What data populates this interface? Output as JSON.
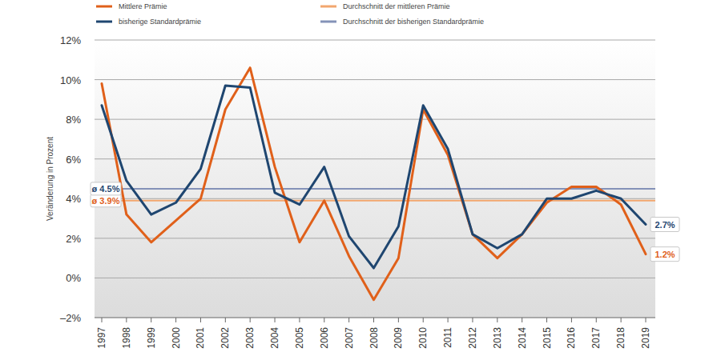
{
  "chart_data": {
    "type": "line",
    "y_label": "Veränderung in Prozent",
    "categories": [
      "1997",
      "1998",
      "1999",
      "2000",
      "2001",
      "2002",
      "2003",
      "2004",
      "2005",
      "2006",
      "2007",
      "2008",
      "2009",
      "2010",
      "2011",
      "2012",
      "2013",
      "2014",
      "2015",
      "2016",
      "2017",
      "2018",
      "2019"
    ],
    "series": [
      {
        "name": "Mittlere Prämie",
        "color": "#e0601a",
        "values": [
          9.8,
          3.2,
          1.8,
          2.9,
          4.0,
          8.5,
          10.6,
          5.6,
          1.8,
          3.9,
          1.1,
          -1.1,
          1.0,
          8.5,
          6.2,
          2.2,
          1.0,
          2.2,
          3.8,
          4.6,
          4.6,
          3.7,
          1.2
        ],
        "value_labels": [
          null,
          null,
          null,
          null,
          null,
          null,
          null,
          null,
          null,
          null,
          null,
          null,
          null,
          null,
          null,
          null,
          null,
          null,
          null,
          null,
          null,
          null,
          "1.2%"
        ]
      },
      {
        "name": "bisherige Standardprämie",
        "color": "#1f4670",
        "values": [
          8.7,
          4.9,
          3.2,
          3.8,
          5.5,
          9.7,
          9.6,
          4.3,
          3.7,
          5.6,
          2.1,
          0.5,
          2.6,
          8.7,
          6.5,
          2.2,
          1.5,
          2.2,
          4.0,
          4.0,
          4.4,
          4.0,
          2.7
        ],
        "value_labels": [
          null,
          null,
          null,
          null,
          null,
          null,
          null,
          null,
          null,
          null,
          null,
          null,
          null,
          null,
          null,
          null,
          null,
          null,
          null,
          null,
          null,
          null,
          "2.7%"
        ]
      }
    ],
    "reference_lines": [
      {
        "name": "Durchschnitt der mittleren Prämie",
        "color": "#f2a66e",
        "value": 3.9,
        "label": "ø 3.9%"
      },
      {
        "name": "Durchschnitt der bisherigen Standardprämie",
        "color": "#8492b8",
        "value": 4.5,
        "label": "ø 4.5%"
      }
    ],
    "ylim": [
      -2,
      12
    ],
    "yticks": [
      {
        "value": -2,
        "label": "–2%"
      },
      {
        "value": 0,
        "label": "0%"
      },
      {
        "value": 2,
        "label": "2%"
      },
      {
        "value": 4,
        "label": "4%"
      },
      {
        "value": 6,
        "label": "6%"
      },
      {
        "value": 8,
        "label": "8%"
      },
      {
        "value": 10,
        "label": "10%"
      },
      {
        "value": 12,
        "label": "12%"
      }
    ],
    "grid": true
  }
}
